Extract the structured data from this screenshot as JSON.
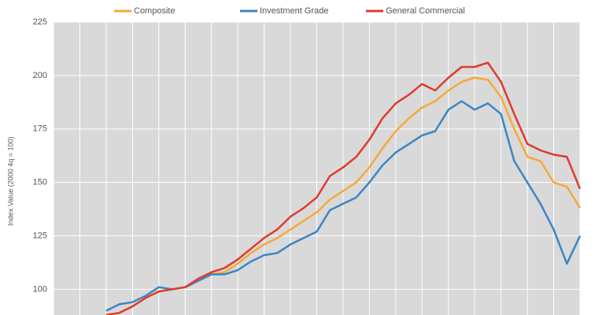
{
  "chart_data": {
    "type": "line",
    "y_label": "Index Value (2000 4q = 100)",
    "categories": [
      null,
      null,
      null,
      null,
      null,
      null,
      null,
      null,
      null,
      null,
      null,
      null,
      null,
      null,
      null,
      null,
      null,
      null,
      null,
      null,
      null,
      null,
      null,
      null,
      null,
      null,
      null,
      null,
      null,
      null,
      null,
      null,
      null,
      null,
      null,
      null,
      null,
      null,
      null,
      null,
      null
    ],
    "series": [
      {
        "name": "Composite",
        "color": "#f5a93a",
        "values": [
          null,
          null,
          null,
          null,
          88,
          89,
          92,
          96,
          99,
          100,
          101,
          104,
          107,
          108,
          112,
          117,
          121,
          124,
          128,
          132,
          136,
          142,
          146,
          150,
          157,
          166,
          174,
          180,
          185,
          188,
          193,
          197,
          199,
          198,
          190,
          175,
          162,
          160,
          150,
          148,
          138
        ]
      },
      {
        "name": "Investment Grade",
        "color": "#3a85c6",
        "values": [
          null,
          null,
          null,
          null,
          90,
          93,
          94,
          97,
          101,
          100,
          101,
          104,
          107,
          107,
          109,
          113,
          116,
          117,
          121,
          124,
          127,
          137,
          140,
          143,
          150,
          158,
          164,
          168,
          172,
          174,
          184,
          188,
          184,
          187,
          182,
          160,
          150,
          140,
          128,
          112,
          125
        ]
      },
      {
        "name": "General Commercial",
        "color": "#e03a2e",
        "values": [
          null,
          null,
          null,
          null,
          88,
          89,
          92,
          96,
          99,
          100,
          101,
          105,
          108,
          110,
          114,
          119,
          124,
          128,
          134,
          138,
          143,
          153,
          157,
          162,
          170,
          180,
          187,
          191,
          196,
          193,
          199,
          204,
          204,
          206,
          197,
          182,
          168,
          165,
          163,
          162,
          147
        ]
      }
    ],
    "ylim": [
      88,
      225
    ],
    "yticks": [
      100,
      125,
      150,
      175,
      200,
      225
    ],
    "grid": true
  }
}
